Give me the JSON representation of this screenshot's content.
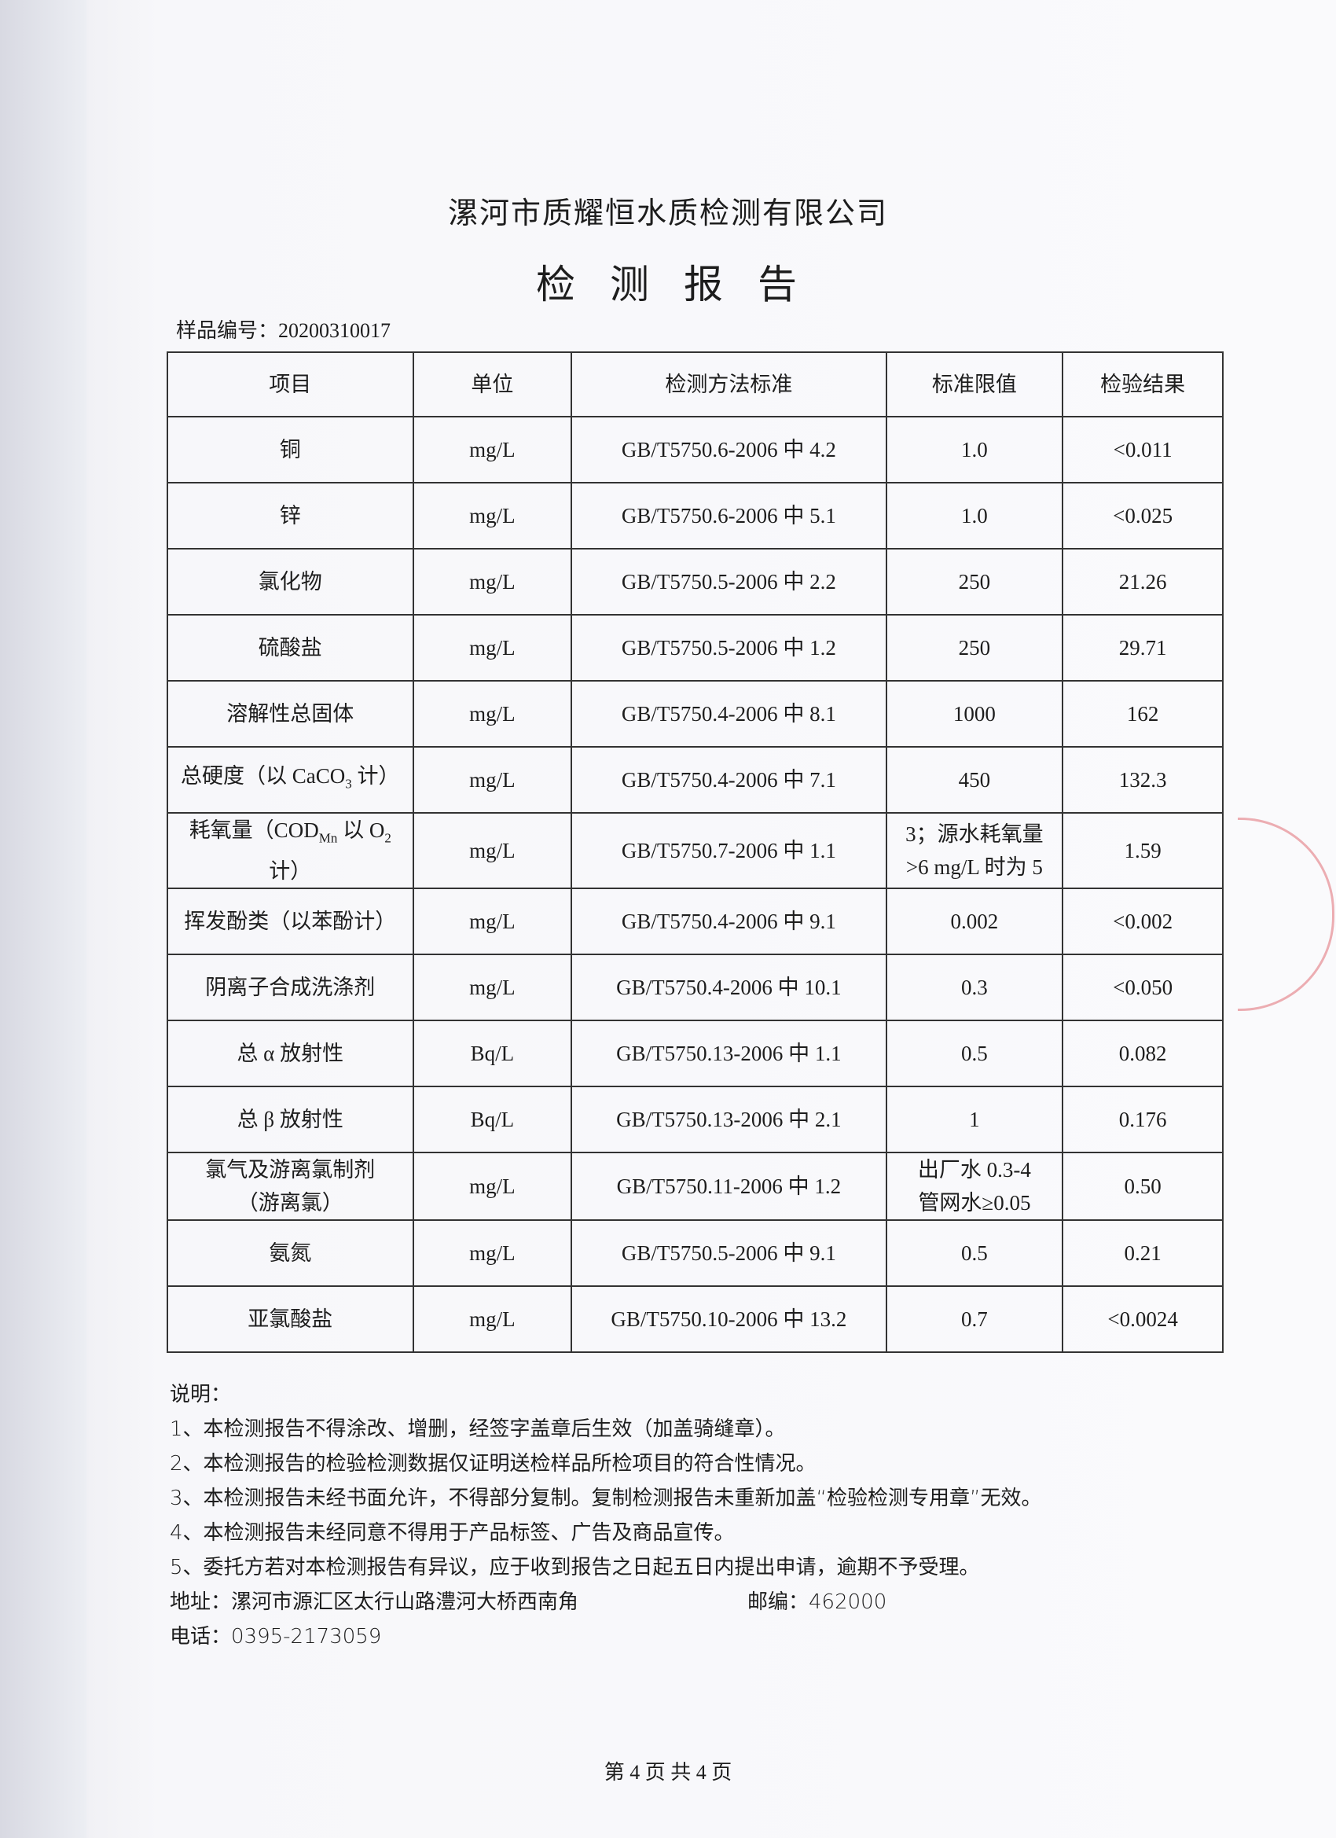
{
  "header": {
    "company": "漯河市质耀恒水质检测有限公司",
    "title": "检测报告",
    "sample_no": "样品编号：20200310017"
  },
  "table": {
    "columns": [
      "项目",
      "单位",
      "检测方法标准",
      "标准限值",
      "检验结果"
    ],
    "rows": [
      {
        "item": [
          "铜"
        ],
        "unit": "mg/L",
        "method": "GB/T5750.6-2006 中 4.2",
        "limit": [
          "1.0"
        ],
        "result": "<0.011"
      },
      {
        "item": [
          "锌"
        ],
        "unit": "mg/L",
        "method": "GB/T5750.6-2006 中 5.1",
        "limit": [
          "1.0"
        ],
        "result": "<0.025"
      },
      {
        "item": [
          "氯化物"
        ],
        "unit": "mg/L",
        "method": "GB/T5750.5-2006 中 2.2",
        "limit": [
          "250"
        ],
        "result": "21.26"
      },
      {
        "item": [
          "硫酸盐"
        ],
        "unit": "mg/L",
        "method": "GB/T5750.5-2006 中 1.2",
        "limit": [
          "250"
        ],
        "result": "29.71"
      },
      {
        "item": [
          "溶解性总固体"
        ],
        "unit": "mg/L",
        "method": "GB/T5750.4-2006 中 8.1",
        "limit": [
          "1000"
        ],
        "result": "162"
      },
      {
        "item": [
          "总硬度（以 CaCO",
          "_3",
          " 计）"
        ],
        "unit": "mg/L",
        "method": "GB/T5750.4-2006 中 7.1",
        "limit": [
          "450"
        ],
        "result": "132.3"
      },
      {
        "item": [
          "耗氧量（COD",
          "_Mn",
          " 以 O",
          "_2",
          "\n计）"
        ],
        "unit": "mg/L",
        "method": "GB/T5750.7-2006 中 1.1",
        "limit": [
          "3；源水耗氧量",
          "\n>6 mg/L 时为 5"
        ],
        "result": "1.59"
      },
      {
        "item": [
          "挥发酚类（以苯酚计）"
        ],
        "unit": "mg/L",
        "method": "GB/T5750.4-2006 中 9.1",
        "limit": [
          "0.002"
        ],
        "result": "<0.002"
      },
      {
        "item": [
          "阴离子合成洗涤剂"
        ],
        "unit": "mg/L",
        "method": "GB/T5750.4-2006 中 10.1",
        "limit": [
          "0.3"
        ],
        "result": "<0.050"
      },
      {
        "item": [
          "总 α 放射性"
        ],
        "unit": "Bq/L",
        "method": "GB/T5750.13-2006 中 1.1",
        "limit": [
          "0.5"
        ],
        "result": "0.082"
      },
      {
        "item": [
          "总 β 放射性"
        ],
        "unit": "Bq/L",
        "method": "GB/T5750.13-2006 中 2.1",
        "limit": [
          "1"
        ],
        "result": "0.176"
      },
      {
        "item": [
          "氯气及游离氯制剂",
          "\n（游离氯）"
        ],
        "unit": "mg/L",
        "method": "GB/T5750.11-2006 中 1.2",
        "limit": [
          "出厂水 0.3-4",
          "\n管网水≥0.05"
        ],
        "result": "0.50"
      },
      {
        "item": [
          "氨氮"
        ],
        "unit": "mg/L",
        "method": "GB/T5750.5-2006 中 9.1",
        "limit": [
          "0.5"
        ],
        "result": "0.21"
      },
      {
        "item": [
          "亚氯酸盐"
        ],
        "unit": "mg/L",
        "method": "GB/T5750.10-2006 中 13.2",
        "limit": [
          "0.7"
        ],
        "result": "<0.0024"
      }
    ]
  },
  "notes": {
    "heading": "说明：",
    "items": [
      "1、本检测报告不得涂改、增删，经签字盖章后生效（加盖骑缝章）。",
      "2、本检测报告的检验检测数据仅证明送检样品所检项目的符合性情况。",
      "3、本检测报告未经书面允许，不得部分复制。复制检测报告未重新加盖“检验检测专用章”无效。",
      "4、本检测报告未经同意不得用于产品标签、广告及商品宣传。",
      "5、委托方若对本检测报告有异议，应于收到报告之日起五日内提出申请，逾期不予受理。"
    ],
    "address": "地址：漯河市源汇区太行山路澧河大桥西南角",
    "postcode": "邮编：462000",
    "phone": "电话：0395-2173059"
  },
  "footer": {
    "page": "第 4 页 共 4 页"
  },
  "colors": {
    "stamp": "#dc505a"
  }
}
